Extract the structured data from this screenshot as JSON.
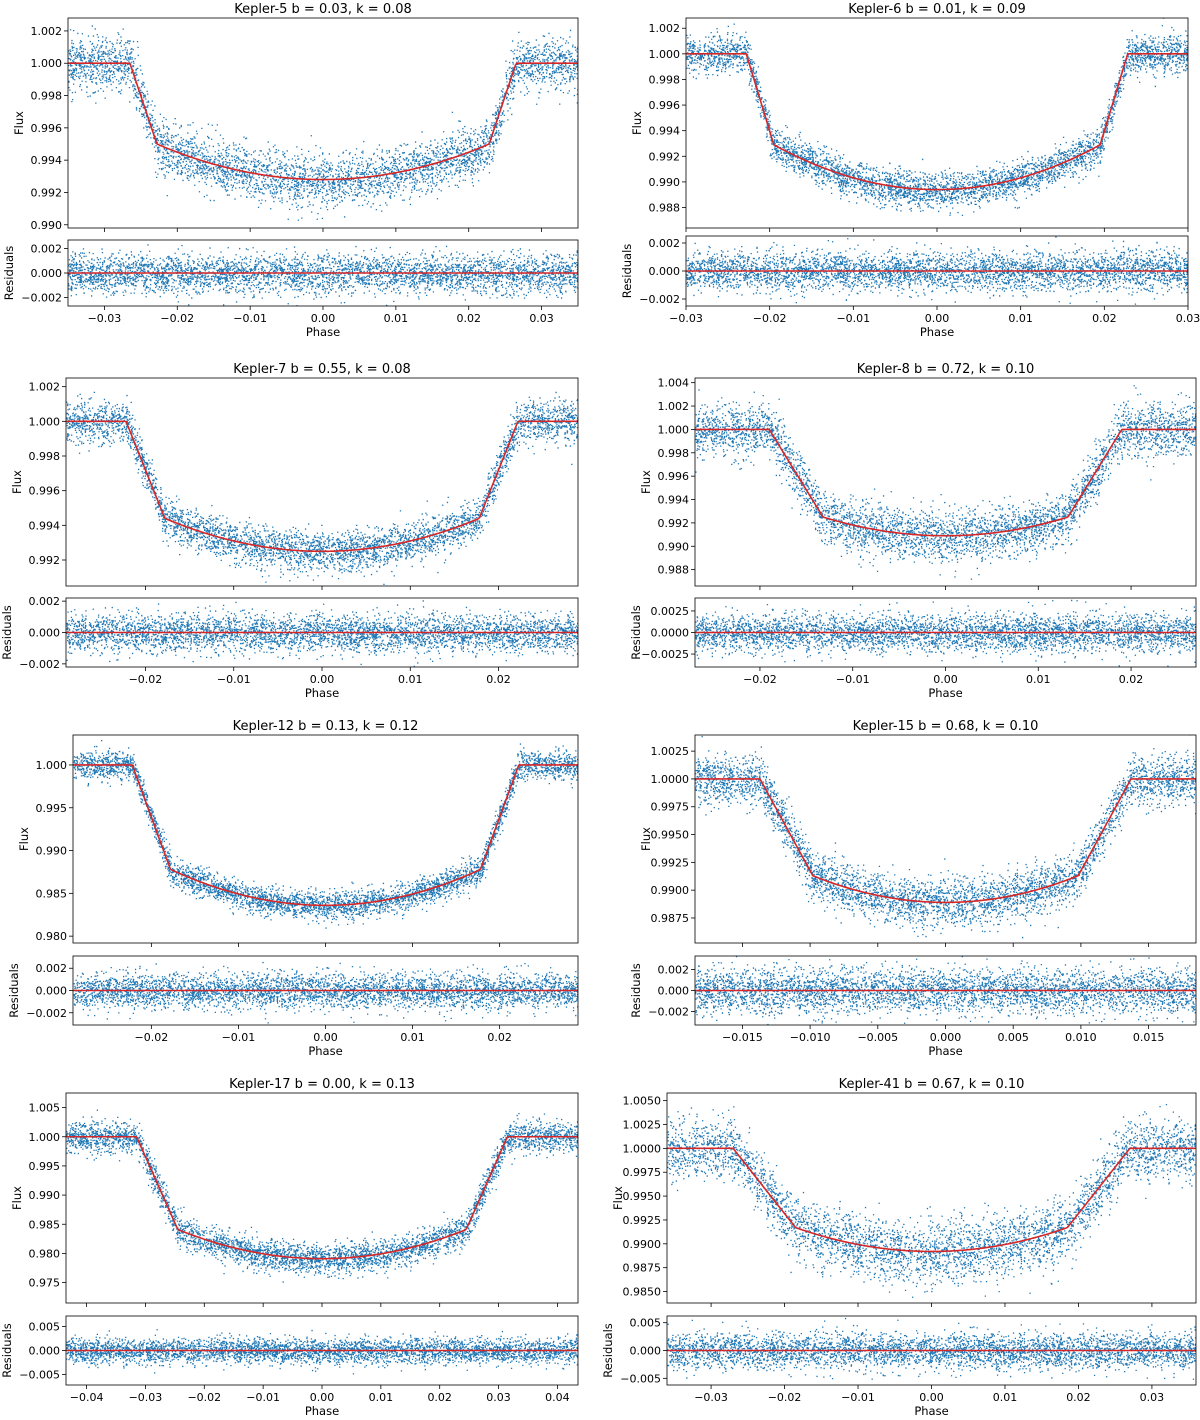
{
  "chart_data": [
    {
      "type": "scatter",
      "title": "Kepler-5  b = 0.03, k = 0.08",
      "xlabel": "Phase",
      "ylabel_top": "Flux",
      "ylabel_bottom": "Residuals",
      "xlim": [
        -0.035,
        0.035
      ],
      "xticks": [
        -0.03,
        -0.02,
        -0.01,
        0.0,
        0.01,
        0.02,
        0.03
      ],
      "flux_ylim": [
        0.9898,
        1.0028
      ],
      "flux_yticks": [
        0.99,
        0.992,
        0.994,
        0.996,
        0.998,
        1.0,
        1.002
      ],
      "res_ylim": [
        -0.0027,
        0.0027
      ],
      "res_yticks": [
        -0.002,
        0.0,
        0.002
      ],
      "model": {
        "t14": 0.0265,
        "t23": 0.0228,
        "depth": 0.0072,
        "curv": 0.0022,
        "noise": 0.0008
      },
      "colors": {
        "points": "#1f77b4",
        "model": "#d62728"
      }
    },
    {
      "type": "scatter",
      "title": "Kepler-6  b = 0.01, k = 0.09",
      "xlabel": "Phase",
      "ylabel_top": "Flux",
      "ylabel_bottom": "Residuals",
      "xlim": [
        -0.03,
        0.03
      ],
      "xticks": [
        -0.03,
        -0.02,
        -0.01,
        0.0,
        0.01,
        0.02,
        0.03
      ],
      "flux_ylim": [
        0.9864,
        1.0028
      ],
      "flux_yticks": [
        0.988,
        0.99,
        0.992,
        0.994,
        0.996,
        0.998,
        1.0,
        1.002
      ],
      "res_ylim": [
        -0.0025,
        0.0025
      ],
      "res_yticks": [
        -0.002,
        0.0,
        0.002
      ],
      "model": {
        "t14": 0.0228,
        "t23": 0.0195,
        "depth": 0.0106,
        "curv": 0.0035,
        "noise": 0.0007
      },
      "colors": {
        "points": "#1f77b4",
        "model": "#d62728"
      }
    },
    {
      "type": "scatter",
      "title": "Kepler-7  b = 0.55, k = 0.08",
      "xlabel": "Phase",
      "ylabel_top": "Flux",
      "ylabel_bottom": "Residuals",
      "xlim": [
        -0.029,
        0.029
      ],
      "xticks": [
        -0.02,
        -0.01,
        0.0,
        0.01,
        0.02
      ],
      "flux_ylim": [
        0.9905,
        1.0025
      ],
      "flux_yticks": [
        0.992,
        0.994,
        0.996,
        0.998,
        1.0,
        1.002
      ],
      "res_ylim": [
        -0.0022,
        0.0022
      ],
      "res_yticks": [
        -0.002,
        0.0,
        0.002
      ],
      "model": {
        "t14": 0.0222,
        "t23": 0.0178,
        "depth": 0.0075,
        "curv": 0.0019,
        "noise": 0.0006
      },
      "colors": {
        "points": "#1f77b4",
        "model": "#d62728"
      }
    },
    {
      "type": "scatter",
      "title": "Kepler-8  b = 0.72, k = 0.10",
      "xlabel": "Phase",
      "ylabel_top": "Flux",
      "ylabel_bottom": "Residuals",
      "xlim": [
        -0.027,
        0.027
      ],
      "xticks": [
        -0.02,
        -0.01,
        0.0,
        0.01,
        0.02
      ],
      "flux_ylim": [
        0.9866,
        1.0044
      ],
      "flux_yticks": [
        0.988,
        0.99,
        0.992,
        0.994,
        0.996,
        0.998,
        1.0,
        1.002,
        1.004
      ],
      "res_ylim": [
        -0.004,
        0.004
      ],
      "res_yticks": [
        -0.0025,
        0.0,
        0.0025
      ],
      "model": {
        "t14": 0.019,
        "t23": 0.0132,
        "depth": 0.0091,
        "curv": 0.0016,
        "noise": 0.0011
      },
      "colors": {
        "points": "#1f77b4",
        "model": "#d62728"
      }
    },
    {
      "type": "scatter",
      "title": "Kepler-12  b = 0.13, k = 0.12",
      "xlabel": "Phase",
      "ylabel_top": "Flux",
      "ylabel_bottom": "Residuals",
      "xlim": [
        -0.029,
        0.029
      ],
      "xticks": [
        -0.02,
        -0.01,
        0.0,
        0.01,
        0.02
      ],
      "flux_ylim": [
        0.9792,
        1.0035
      ],
      "flux_yticks": [
        0.98,
        0.985,
        0.99,
        0.995,
        1.0
      ],
      "res_ylim": [
        -0.0031,
        0.0031
      ],
      "res_yticks": [
        -0.002,
        0.0,
        0.002
      ],
      "model": {
        "t14": 0.0222,
        "t23": 0.0178,
        "depth": 0.0164,
        "curv": 0.0042,
        "noise": 0.0008
      },
      "colors": {
        "points": "#1f77b4",
        "model": "#d62728"
      }
    },
    {
      "type": "scatter",
      "title": "Kepler-15  b = 0.68, k = 0.10",
      "xlabel": "Phase",
      "ylabel_top": "Flux",
      "ylabel_bottom": "Residuals",
      "xlim": [
        -0.0185,
        0.0185
      ],
      "xticks": [
        -0.015,
        -0.01,
        -0.005,
        0.0,
        0.005,
        0.01,
        0.015
      ],
      "flux_ylim": [
        0.98525,
        1.00395
      ],
      "flux_yticks": [
        0.9875,
        0.99,
        0.9925,
        0.995,
        0.9975,
        1.0,
        1.0025
      ],
      "res_ylim": [
        -0.0033,
        0.0033
      ],
      "res_yticks": [
        -0.002,
        0.0,
        0.002
      ],
      "model": {
        "t14": 0.0137,
        "t23": 0.0098,
        "depth": 0.0111,
        "curv": 0.0024,
        "noise": 0.0011
      },
      "colors": {
        "points": "#1f77b4",
        "model": "#d62728"
      }
    },
    {
      "type": "scatter",
      "title": "Kepler-17  b = 0.00, k = 0.13",
      "xlabel": "Phase",
      "ylabel_top": "Flux",
      "ylabel_bottom": "Residuals",
      "xlim": [
        -0.0435,
        0.0435
      ],
      "xticks": [
        -0.04,
        -0.03,
        -0.02,
        -0.01,
        0.0,
        0.01,
        0.02,
        0.03,
        0.04
      ],
      "flux_ylim": [
        0.9715,
        1.0075
      ],
      "flux_yticks": [
        0.975,
        0.98,
        0.985,
        0.99,
        0.995,
        1.0,
        1.005
      ],
      "res_ylim": [
        -0.0072,
        0.0072
      ],
      "res_yticks": [
        -0.005,
        0.0,
        0.005
      ],
      "model": {
        "t14": 0.0315,
        "t23": 0.0245,
        "depth": 0.0209,
        "curv": 0.005,
        "noise": 0.0013
      },
      "colors": {
        "points": "#1f77b4",
        "model": "#d62728"
      }
    },
    {
      "type": "scatter",
      "title": "Kepler-41  b = 0.67, k = 0.10",
      "xlabel": "Phase",
      "ylabel_top": "Flux",
      "ylabel_bottom": "Residuals",
      "xlim": [
        -0.036,
        0.036
      ],
      "xticks": [
        -0.03,
        -0.02,
        -0.01,
        0.0,
        0.01,
        0.02,
        0.03
      ],
      "flux_ylim": [
        0.9838,
        1.0058
      ],
      "flux_yticks": [
        0.985,
        0.9875,
        0.99,
        0.9925,
        0.995,
        0.9975,
        1.0,
        1.0025,
        1.005
      ],
      "res_ylim": [
        -0.0062,
        0.0062
      ],
      "res_yticks": [
        -0.005,
        0.0,
        0.005
      ],
      "model": {
        "t14": 0.027,
        "t23": 0.0185,
        "depth": 0.0108,
        "curv": 0.0025,
        "noise": 0.0016
      },
      "colors": {
        "points": "#1f77b4",
        "model": "#d62728"
      }
    }
  ]
}
